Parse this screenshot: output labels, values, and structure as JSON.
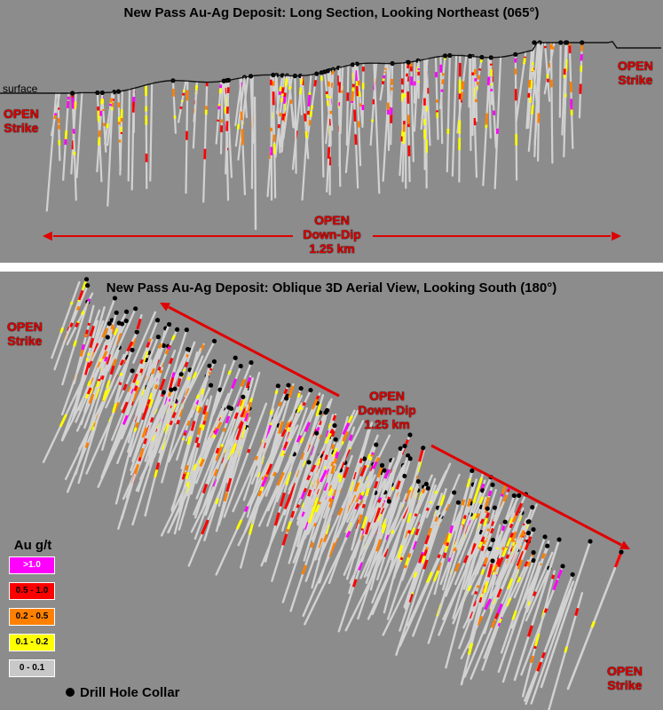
{
  "top": {
    "title": "New Pass Au-Ag Deposit:  Long Section, Looking Northeast (065°)",
    "surface_label": "surface",
    "left_label": [
      "OPEN",
      "Strike"
    ],
    "right_label": [
      "OPEN",
      "Strike"
    ],
    "center_label": [
      "OPEN",
      "Down-Dip",
      "1.25 km"
    ]
  },
  "bottom": {
    "title": "New Pass Au-Ag Deposit:  Oblique 3D Aerial View, Looking South (180°)",
    "topleft_label": [
      "OPEN",
      "Strike"
    ],
    "bottomright_label": [
      "OPEN",
      "Strike"
    ],
    "center_label": [
      "OPEN",
      "Down-Dip",
      "1.25 km"
    ]
  },
  "legend": {
    "title": "Au g/t",
    "items": [
      {
        "label": ">1.0",
        "color": "#ff00ff",
        "text_color": "#ffffff"
      },
      {
        "label": "0.5 - 1.0",
        "color": "#ff0000",
        "text_color": "#000000"
      },
      {
        "label": "0.2 - 0.5",
        "color": "#ff8000",
        "text_color": "#000000"
      },
      {
        "label": "0.1 - 0.2",
        "color": "#ffff00",
        "text_color": "#000000"
      },
      {
        "label": "0 - 0.1",
        "color": "#c8c8c8",
        "text_color": "#000000"
      }
    ],
    "collar_label": "Drill Hole Collar"
  },
  "colors": {
    "panel_bg": "#8c8c8c",
    "arrow": "#e00000",
    "hole": "#d2d2d2"
  }
}
